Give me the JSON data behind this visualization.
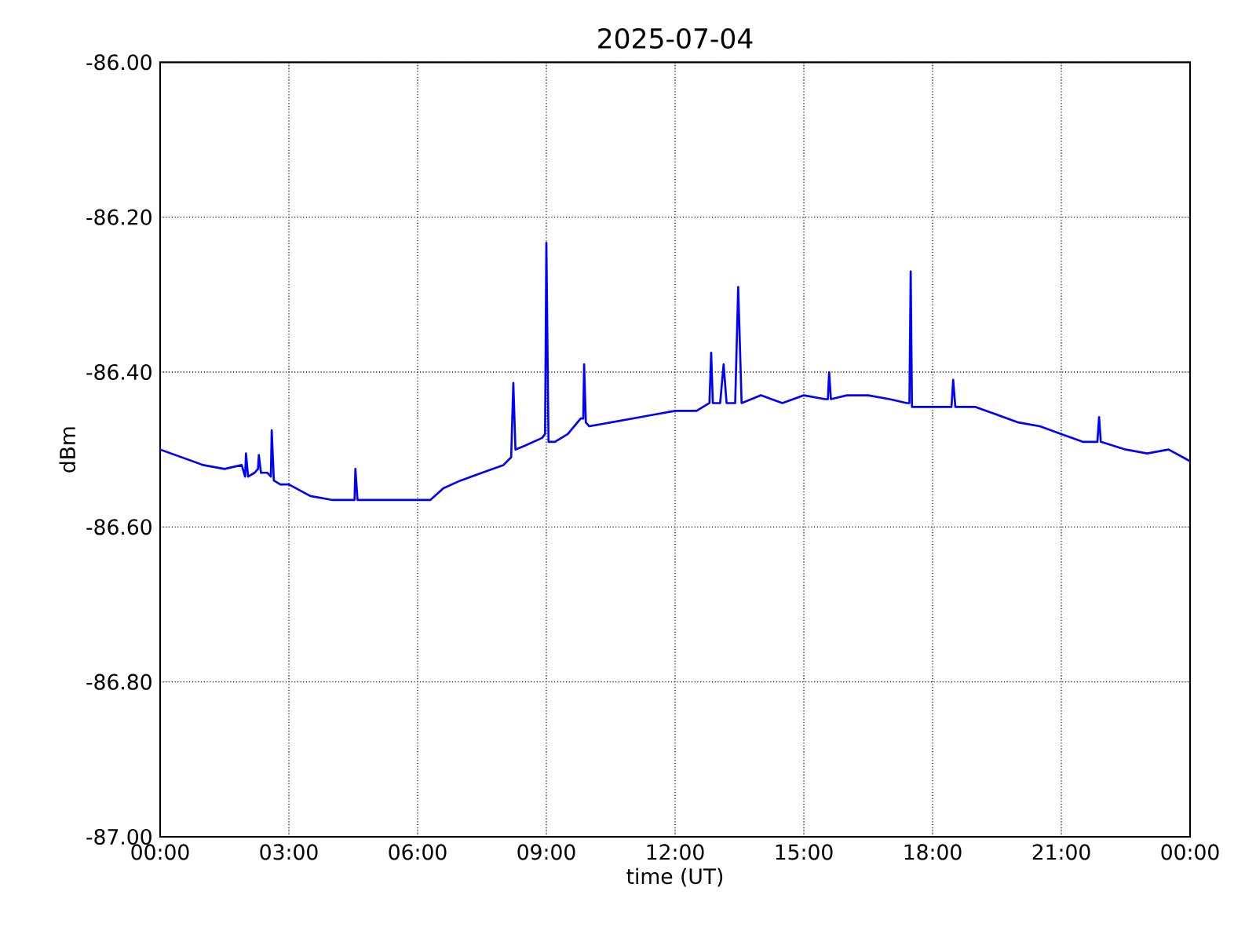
{
  "chart_data": {
    "type": "line",
    "title": "2025-07-04",
    "xlabel": "time (UT)",
    "ylabel": "dBm",
    "x": [
      0.0,
      0.5,
      1.0,
      1.5,
      1.9,
      1.98,
      2.0,
      2.05,
      2.2,
      2.28,
      2.3,
      2.35,
      2.5,
      2.58,
      2.6,
      2.65,
      2.8,
      3.0,
      3.5,
      4.0,
      4.5,
      4.53,
      4.55,
      4.6,
      5.0,
      5.5,
      6.0,
      6.3,
      6.6,
      7.0,
      7.5,
      8.0,
      8.18,
      8.23,
      8.28,
      8.5,
      8.9,
      8.97,
      9.0,
      9.05,
      9.2,
      9.5,
      9.8,
      9.86,
      9.88,
      9.92,
      10.0,
      10.5,
      11.0,
      11.5,
      12.0,
      12.5,
      12.8,
      12.84,
      12.88,
      13.05,
      13.13,
      13.2,
      13.4,
      13.47,
      13.55,
      14.0,
      14.5,
      15.0,
      15.5,
      15.56,
      15.59,
      15.63,
      16.0,
      16.5,
      17.0,
      17.4,
      17.46,
      17.49,
      17.52,
      18.0,
      18.44,
      18.48,
      18.53,
      19.0,
      19.5,
      20.0,
      20.5,
      21.0,
      21.5,
      21.84,
      21.88,
      21.92,
      22.5,
      23.0,
      23.5,
      24.0
    ],
    "values": [
      -86.5,
      -86.51,
      -86.52,
      -86.525,
      -86.52,
      -86.535,
      -86.505,
      -86.535,
      -86.53,
      -86.525,
      -86.507,
      -86.53,
      -86.53,
      -86.535,
      -86.475,
      -86.54,
      -86.545,
      -86.545,
      -86.56,
      -86.565,
      -86.565,
      -86.565,
      -86.525,
      -86.565,
      -86.565,
      -86.565,
      -86.565,
      -86.565,
      -86.55,
      -86.54,
      -86.53,
      -86.52,
      -86.51,
      -86.414,
      -86.5,
      -86.495,
      -86.485,
      -86.48,
      -86.233,
      -86.49,
      -86.49,
      -86.48,
      -86.46,
      -86.46,
      -86.39,
      -86.465,
      -86.47,
      -86.465,
      -86.46,
      -86.455,
      -86.45,
      -86.45,
      -86.44,
      -86.375,
      -86.44,
      -86.44,
      -86.39,
      -86.44,
      -86.44,
      -86.29,
      -86.44,
      -86.43,
      -86.44,
      -86.43,
      -86.435,
      -86.435,
      -86.4,
      -86.435,
      -86.43,
      -86.43,
      -86.435,
      -86.44,
      -86.44,
      -86.27,
      -86.445,
      -86.445,
      -86.445,
      -86.41,
      -86.445,
      -86.445,
      -86.455,
      -86.465,
      -86.47,
      -86.48,
      -86.49,
      -86.49,
      -86.458,
      -86.49,
      -86.5,
      -86.505,
      -86.5,
      -86.515
    ],
    "color": "#0000ff",
    "xlim": [
      0,
      24
    ],
    "xticks": [
      {
        "value": 0,
        "label": "00:00"
      },
      {
        "value": 3,
        "label": "03:00"
      },
      {
        "value": 6,
        "label": "06:00"
      },
      {
        "value": 9,
        "label": "09:00"
      },
      {
        "value": 12,
        "label": "12:00"
      },
      {
        "value": 15,
        "label": "15:00"
      },
      {
        "value": 18,
        "label": "18:00"
      },
      {
        "value": 21,
        "label": "21:00"
      },
      {
        "value": 24,
        "label": "00:00"
      }
    ],
    "ylim": [
      -87,
      -86
    ],
    "yticks": [
      {
        "value": -87,
        "label": "-87.00"
      },
      {
        "value": -86.8,
        "label": "-86.80"
      },
      {
        "value": -86.6,
        "label": "-86.60"
      },
      {
        "value": -86.4,
        "label": "-86.40"
      },
      {
        "value": -86.2,
        "label": "-86.20"
      },
      {
        "value": -86,
        "label": "-86.00"
      }
    ],
    "grid": true,
    "marker": "none",
    "line_style": "solid"
  }
}
